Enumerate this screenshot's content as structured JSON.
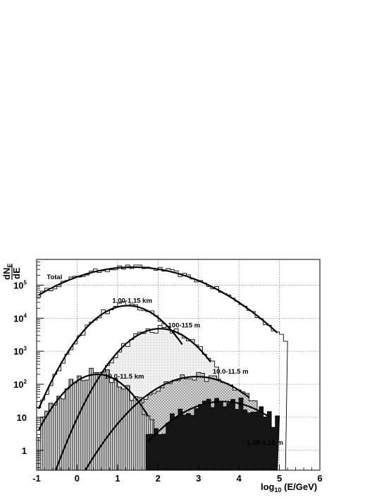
{
  "chart_data": {
    "type": "area",
    "title": "",
    "xlabel": "log₁₀ (E/GeV)",
    "xlabel_parts": {
      "main": "log",
      "sub": "10",
      "rest": " (E/GeV)"
    },
    "ylabel_parts": {
      "num": "dN",
      "num_sub": "E",
      "den": "dE"
    },
    "xlim": [
      -1,
      6
    ],
    "ylim": [
      0.25,
      600000
    ],
    "yscale": "log",
    "grid": true,
    "x_ticks": [
      "-1",
      "0",
      "1",
      "2",
      "3",
      "4",
      "5",
      "6"
    ],
    "y_ticks": [
      {
        "value": 1,
        "base": "1",
        "exp": ""
      },
      {
        "value": 10,
        "base": "10",
        "exp": ""
      },
      {
        "value": 100,
        "base": "10",
        "exp": "2"
      },
      {
        "value": 1000,
        "base": "10",
        "exp": "3"
      },
      {
        "value": 10000,
        "base": "10",
        "exp": "4"
      },
      {
        "value": 100000,
        "base": "10",
        "exp": "5"
      }
    ],
    "series": [
      {
        "name": "Total",
        "fill": "none",
        "curve": {
          "peak_x": 1.38,
          "peak_y": 350000,
          "sigma": 1.18,
          "x_range": [
            -0.95,
            4.95
          ]
        },
        "hist_noise": 0.18,
        "label_pos": [
          -0.75,
          150000
        ]
      },
      {
        "name": "1.00-1.15 km",
        "fill": "#ffffff",
        "curve": {
          "peak_x": 1.25,
          "peak_y": 24000,
          "sigma": 0.58,
          "x_range": [
            -0.95,
            2.6
          ]
        },
        "hist_noise": 0.3,
        "label_pos": [
          0.87,
          29000
        ]
      },
      {
        "name": "100-115 m",
        "fill": "#e6e6e6",
        "curve": {
          "peak_x": 2.05,
          "peak_y": 4800,
          "sigma": 0.58,
          "x_range": [
            -0.95,
            3.3
          ]
        },
        "hist_noise": 0.3,
        "label_pos": [
          2.25,
          5200
        ]
      },
      {
        "name": "10.0-11.5 km",
        "fill": "#aaaaaa",
        "curve": {
          "peak_x": 0.5,
          "peak_y": 200,
          "sigma": 0.52,
          "x_range": [
            -0.95,
            1.75
          ]
        },
        "hist_noise": 0.55,
        "label_pos": [
          0.68,
          150
        ]
      },
      {
        "name": "10.0-11.5 m",
        "fill": "#c6c6c6",
        "curve": {
          "peak_x": 2.95,
          "peak_y": 170,
          "sigma": 0.76,
          "x_range": [
            -0.1,
            4.25
          ]
        },
        "hist_noise": 0.3,
        "label_pos": [
          3.35,
          210
        ]
      },
      {
        "name": "1.00-1.15 m",
        "fill": "#111111",
        "curve": {
          "peak_x": 3.6,
          "peak_y": 30,
          "sigma": 0.78,
          "x_range": [
            1.75,
            4.75
          ]
        },
        "hist_noise": 0.55,
        "label_pos": [
          4.2,
          1.45
        ]
      }
    ]
  }
}
